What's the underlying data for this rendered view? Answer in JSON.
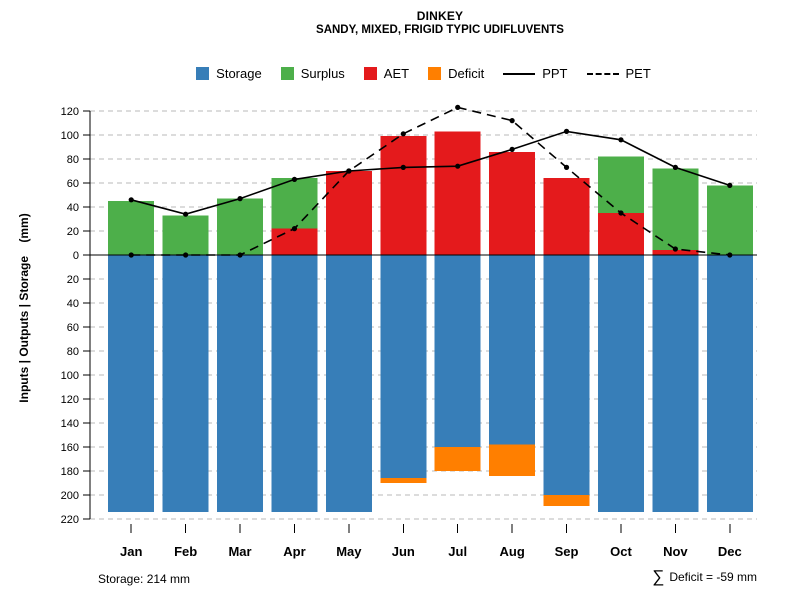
{
  "colors": {
    "storage": "#377EB8",
    "surplus": "#4DAF4A",
    "aet": "#E41A1C",
    "deficit": "#FF7F00",
    "line": "#000000",
    "grid": "#B8B8B8"
  },
  "legend": {
    "items": [
      {
        "label": "Storage",
        "marker": "swatch",
        "color_key": "storage"
      },
      {
        "label": "Surplus",
        "marker": "swatch",
        "color_key": "surplus"
      },
      {
        "label": "AET",
        "marker": "swatch",
        "color_key": "aet"
      },
      {
        "label": "Deficit",
        "marker": "swatch",
        "color_key": "deficit"
      },
      {
        "label": "PPT",
        "marker": "line-solid"
      },
      {
        "label": "PET",
        "marker": "line-dashed"
      }
    ]
  },
  "footer": {
    "left": "Storage: 214 mm",
    "sigma": "∑",
    "right": "Deficit = -59 mm"
  },
  "chart_data": {
    "type": "bar",
    "title": "DINKEY",
    "subtitle": "SANDY, MIXED, FRIGID TYPIC UDIFLUVENTS",
    "categories": [
      "Jan",
      "Feb",
      "Mar",
      "Apr",
      "May",
      "Jun",
      "Jul",
      "Aug",
      "Sep",
      "Oct",
      "Nov",
      "Dec"
    ],
    "y_axis": {
      "label": "Inputs | Outputs | Storage    (mm)",
      "up_ticks": [
        0,
        20,
        40,
        60,
        80,
        100,
        120
      ],
      "down_ticks": [
        20,
        40,
        60,
        80,
        100,
        120,
        140,
        160,
        180,
        200,
        220
      ],
      "orientation": "positive up, storage/deficit plotted downward from 0"
    },
    "grid": "horizontal dashed at every 20 mm",
    "legend_position": "top center",
    "storage_max_mm": 214,
    "deficit_sum_mm": -59,
    "series": [
      {
        "name": "Storage",
        "kind": "bar-down",
        "color_key": "storage",
        "values": [
          214,
          214,
          214,
          214,
          214,
          186,
          160,
          158,
          200,
          214,
          214,
          214
        ]
      },
      {
        "name": "Surplus",
        "kind": "bar-up-stacked-on-AET",
        "color_key": "surplus",
        "values": [
          45,
          33,
          47,
          42,
          0,
          0,
          0,
          0,
          0,
          47,
          68,
          58
        ]
      },
      {
        "name": "AET",
        "kind": "bar-up",
        "color_key": "aet",
        "values": [
          0,
          0,
          0,
          22,
          70,
          99,
          103,
          86,
          64,
          35,
          4,
          0
        ]
      },
      {
        "name": "Deficit",
        "kind": "bar-down-stacked-on-Storage",
        "color_key": "deficit",
        "values": [
          0,
          0,
          0,
          0,
          0,
          4,
          20,
          26,
          9,
          0,
          0,
          0
        ]
      },
      {
        "name": "PPT",
        "kind": "line-solid",
        "color_key": "line",
        "values": [
          46,
          34,
          47,
          63,
          70,
          73,
          74,
          88,
          103,
          96,
          73,
          58
        ]
      },
      {
        "name": "PET",
        "kind": "line-dashed",
        "color_key": "line",
        "values": [
          0,
          0,
          0,
          22,
          70,
          101,
          123,
          112,
          73,
          35,
          5,
          0
        ]
      }
    ]
  }
}
